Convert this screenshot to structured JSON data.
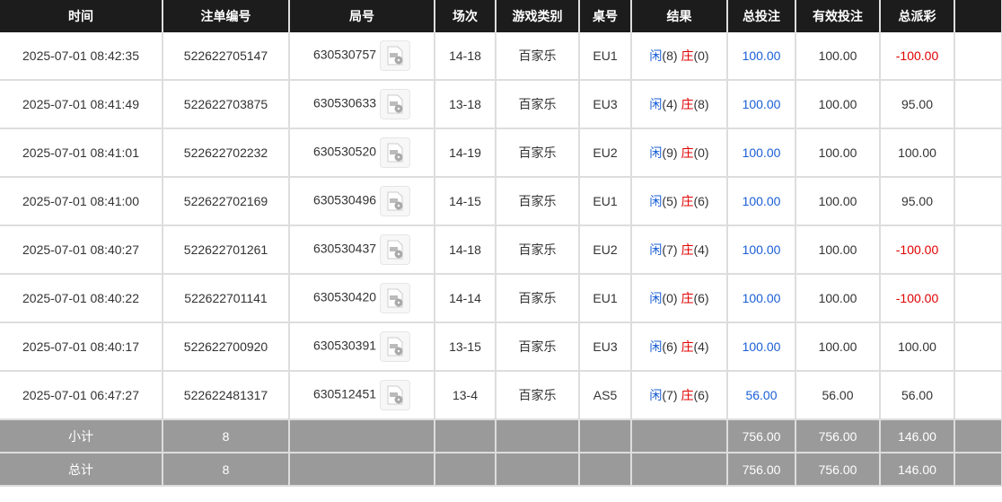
{
  "headers": [
    "时间",
    "注单编号",
    "局号",
    "场次",
    "游戏类别",
    "桌号",
    "结果",
    "总投注",
    "有效投注",
    "总派彩"
  ],
  "rows": [
    {
      "time": "2025-07-01 08:42:35",
      "bet_id": "522622705147",
      "round": "630530757",
      "shoe": "14-18",
      "game": "百家乐",
      "table": "EU1",
      "player_label": "闲",
      "player": "(8)",
      "banker_label": "庄",
      "banker": "(0)",
      "total_bet": "100.00",
      "valid_bet": "100.00",
      "payout": "-100.00",
      "payout_negative": true
    },
    {
      "time": "2025-07-01 08:41:49",
      "bet_id": "522622703875",
      "round": "630530633",
      "shoe": "13-18",
      "game": "百家乐",
      "table": "EU3",
      "player_label": "闲",
      "player": "(4)",
      "banker_label": "庄",
      "banker": "(8)",
      "total_bet": "100.00",
      "valid_bet": "100.00",
      "payout": "95.00",
      "payout_negative": false
    },
    {
      "time": "2025-07-01 08:41:01",
      "bet_id": "522622702232",
      "round": "630530520",
      "shoe": "14-19",
      "game": "百家乐",
      "table": "EU2",
      "player_label": "闲",
      "player": "(9)",
      "banker_label": "庄",
      "banker": "(0)",
      "total_bet": "100.00",
      "valid_bet": "100.00",
      "payout": "100.00",
      "payout_negative": false
    },
    {
      "time": "2025-07-01 08:41:00",
      "bet_id": "522622702169",
      "round": "630530496",
      "shoe": "14-15",
      "game": "百家乐",
      "table": "EU1",
      "player_label": "闲",
      "player": "(5)",
      "banker_label": "庄",
      "banker": "(6)",
      "total_bet": "100.00",
      "valid_bet": "100.00",
      "payout": "95.00",
      "payout_negative": false
    },
    {
      "time": "2025-07-01 08:40:27",
      "bet_id": "522622701261",
      "round": "630530437",
      "shoe": "14-18",
      "game": "百家乐",
      "table": "EU2",
      "player_label": "闲",
      "player": "(7)",
      "banker_label": "庄",
      "banker": "(4)",
      "total_bet": "100.00",
      "valid_bet": "100.00",
      "payout": "-100.00",
      "payout_negative": true
    },
    {
      "time": "2025-07-01 08:40:22",
      "bet_id": "522622701141",
      "round": "630530420",
      "shoe": "14-14",
      "game": "百家乐",
      "table": "EU1",
      "player_label": "闲",
      "player": "(0)",
      "banker_label": "庄",
      "banker": "(6)",
      "total_bet": "100.00",
      "valid_bet": "100.00",
      "payout": "-100.00",
      "payout_negative": true
    },
    {
      "time": "2025-07-01 08:40:17",
      "bet_id": "522622700920",
      "round": "630530391",
      "shoe": "13-15",
      "game": "百家乐",
      "table": "EU3",
      "player_label": "闲",
      "player": "(6)",
      "banker_label": "庄",
      "banker": "(4)",
      "total_bet": "100.00",
      "valid_bet": "100.00",
      "payout": "100.00",
      "payout_negative": false
    },
    {
      "time": "2025-07-01 06:47:27",
      "bet_id": "522622481317",
      "round": "630512451",
      "shoe": "13-4",
      "game": "百家乐",
      "table": "AS5",
      "player_label": "闲",
      "player": "(7)",
      "banker_label": "庄",
      "banker": "(6)",
      "total_bet": "56.00",
      "valid_bet": "56.00",
      "payout": "56.00",
      "payout_negative": false
    }
  ],
  "subtotal": {
    "label": "小计",
    "count": "8",
    "total_bet": "756.00",
    "valid_bet": "756.00",
    "payout": "146.00"
  },
  "total": {
    "label": "总计",
    "count": "8",
    "total_bet": "756.00",
    "valid_bet": "756.00",
    "payout": "146.00"
  },
  "icons": {
    "replay": "video-file-icon"
  },
  "colors": {
    "header": "#1c1c1c",
    "blue": "#1a5fd6",
    "red": "#e00000",
    "summary": "#9a9a9a"
  }
}
